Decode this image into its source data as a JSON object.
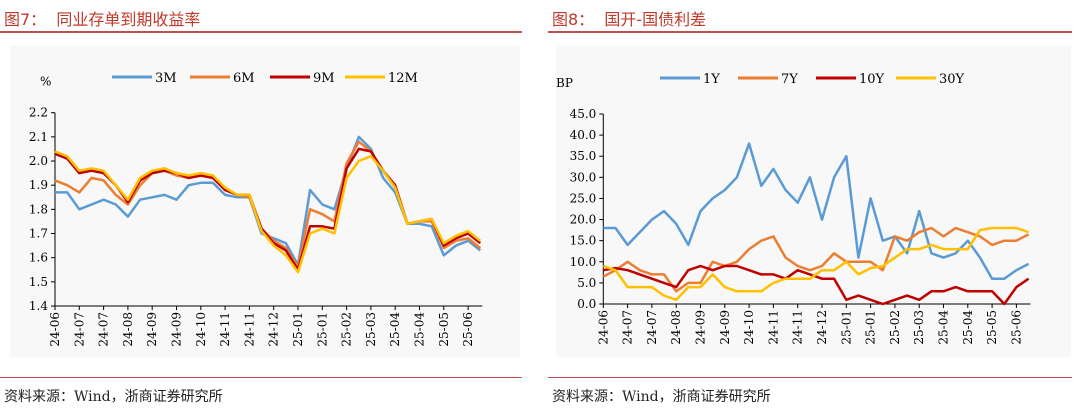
{
  "panels": [
    {
      "title": "图7：  同业存单到期收益率",
      "source": "资料来源：Wind，浙商证券研究所"
    },
    {
      "title": "图8：  国开-国债利差",
      "source": "资料来源：Wind，浙商证券研究所"
    }
  ],
  "chart_data": [
    {
      "type": "line",
      "title": "同业存单到期收益率",
      "ylabel": "%",
      "ylim": [
        1.4,
        2.2
      ],
      "yticks": [
        "1.4",
        "1.5",
        "1.6",
        "1.7",
        "1.8",
        "1.9",
        "2.0",
        "2.1",
        "2.2"
      ],
      "xticks": [
        "24-06",
        "24-07",
        "24-07",
        "24-08",
        "24-09",
        "24-09",
        "24-10",
        "24-11",
        "24-11",
        "24-12",
        "25-01",
        "25-01",
        "25-02",
        "25-03",
        "25-04",
        "25-04",
        "25-05",
        "25-06"
      ],
      "legend": "top",
      "grid": false,
      "x": [
        "2024-06-03",
        "2024-06-14",
        "2024-06-25",
        "2024-07-06",
        "2024-07-17",
        "2024-07-28",
        "2024-08-08",
        "2024-08-19",
        "2024-08-30",
        "2024-09-10",
        "2024-09-21",
        "2024-10-02",
        "2024-10-13",
        "2024-10-24",
        "2024-11-04",
        "2024-11-15",
        "2024-11-26",
        "2024-12-07",
        "2024-12-18",
        "2024-12-29",
        "2025-01-09",
        "2025-01-20",
        "2025-01-31",
        "2025-02-11",
        "2025-02-22",
        "2025-03-05",
        "2025-03-16",
        "2025-03-27",
        "2025-04-07",
        "2025-04-18",
        "2025-04-29",
        "2025-05-10",
        "2025-05-21",
        "2025-06-01",
        "2025-06-12",
        "2025-06-20"
      ],
      "series": [
        {
          "name": "3M",
          "color": "#5B9BD5",
          "values": [
            1.87,
            1.87,
            1.8,
            1.82,
            1.84,
            1.82,
            1.77,
            1.84,
            1.85,
            1.86,
            1.84,
            1.9,
            1.91,
            1.91,
            1.86,
            1.85,
            1.85,
            1.7,
            1.68,
            1.66,
            1.57,
            1.88,
            1.82,
            1.8,
            1.97,
            2.1,
            2.05,
            1.93,
            1.87,
            1.74,
            1.74,
            1.73,
            1.61,
            1.65,
            1.67,
            1.63
          ]
        },
        {
          "name": "6M",
          "color": "#ED7D31",
          "values": [
            1.92,
            1.9,
            1.87,
            1.93,
            1.92,
            1.86,
            1.82,
            1.9,
            1.95,
            1.96,
            1.94,
            1.93,
            1.94,
            1.93,
            1.88,
            1.86,
            1.85,
            1.72,
            1.67,
            1.64,
            1.56,
            1.8,
            1.78,
            1.75,
            1.99,
            2.08,
            2.04,
            1.96,
            1.89,
            1.74,
            1.75,
            1.75,
            1.64,
            1.67,
            1.68,
            1.64
          ]
        },
        {
          "name": "9M",
          "color": "#C00000",
          "values": [
            2.03,
            2.01,
            1.95,
            1.96,
            1.95,
            1.9,
            1.83,
            1.92,
            1.95,
            1.96,
            1.95,
            1.93,
            1.94,
            1.93,
            1.88,
            1.86,
            1.86,
            1.72,
            1.66,
            1.63,
            1.55,
            1.73,
            1.73,
            1.72,
            1.97,
            2.05,
            2.04,
            1.96,
            1.9,
            1.74,
            1.75,
            1.76,
            1.65,
            1.68,
            1.7,
            1.66
          ]
        },
        {
          "name": "12M",
          "color": "#FFC000",
          "values": [
            2.04,
            2.02,
            1.96,
            1.97,
            1.96,
            1.9,
            1.84,
            1.93,
            1.96,
            1.97,
            1.95,
            1.94,
            1.95,
            1.94,
            1.89,
            1.86,
            1.86,
            1.71,
            1.65,
            1.61,
            1.54,
            1.7,
            1.72,
            1.7,
            1.93,
            2.0,
            2.02,
            1.96,
            1.89,
            1.74,
            1.75,
            1.76,
            1.66,
            1.69,
            1.71,
            1.67
          ]
        }
      ]
    },
    {
      "type": "line",
      "title": "国开-国债利差",
      "ylabel": "BP",
      "ylim": [
        0,
        45
      ],
      "yticks": [
        "0.0",
        "5.0",
        "10.0",
        "15.0",
        "20.0",
        "25.0",
        "30.0",
        "35.0",
        "40.0",
        "45.0"
      ],
      "xticks": [
        "24-06",
        "24-07",
        "24-07",
        "24-08",
        "24-09",
        "24-09",
        "24-10",
        "24-11",
        "24-11",
        "24-12",
        "25-01",
        "25-01",
        "25-02",
        "25-03",
        "25-04",
        "25-04",
        "25-05",
        "25-06"
      ],
      "legend": "top",
      "grid": false,
      "x": [
        "2024-06-03",
        "2024-06-14",
        "2024-06-25",
        "2024-07-06",
        "2024-07-17",
        "2024-07-28",
        "2024-08-08",
        "2024-08-19",
        "2024-08-30",
        "2024-09-10",
        "2024-09-21",
        "2024-10-02",
        "2024-10-13",
        "2024-10-24",
        "2024-11-04",
        "2024-11-15",
        "2024-11-26",
        "2024-12-07",
        "2024-12-18",
        "2024-12-29",
        "2025-01-09",
        "2025-01-20",
        "2025-01-31",
        "2025-02-11",
        "2025-02-22",
        "2025-03-05",
        "2025-03-16",
        "2025-03-27",
        "2025-04-07",
        "2025-04-18",
        "2025-04-29",
        "2025-05-10",
        "2025-05-21",
        "2025-06-01",
        "2025-06-12",
        "2025-06-20"
      ],
      "series": [
        {
          "name": "1Y",
          "color": "#5B9BD5",
          "values": [
            18,
            18,
            14,
            17,
            20,
            22,
            19,
            14,
            22,
            25,
            27,
            30,
            38,
            28,
            32,
            27,
            24,
            30,
            20,
            30,
            35,
            11,
            25,
            15,
            16,
            12,
            22,
            12,
            11,
            12,
            15,
            11,
            6,
            6,
            8,
            9.5
          ]
        },
        {
          "name": "7Y",
          "color": "#ED7D31",
          "values": [
            6.5,
            8,
            10,
            8,
            7,
            7,
            3,
            5,
            5,
            10,
            9,
            10,
            13,
            15,
            16,
            11,
            9,
            8,
            9,
            12,
            10,
            10,
            10,
            8,
            16,
            15,
            17,
            18,
            16,
            18,
            17,
            16,
            14,
            15,
            15,
            16.5
          ]
        },
        {
          "name": "10Y",
          "color": "#C00000",
          "values": [
            8,
            8.5,
            8,
            7,
            6,
            5,
            4,
            8,
            9,
            8,
            9,
            9,
            8,
            7,
            7,
            6,
            8,
            7,
            6,
            6,
            1,
            2,
            1,
            0,
            1,
            2,
            1,
            3,
            3,
            4,
            3,
            3,
            3,
            0,
            4,
            6
          ]
        },
        {
          "name": "30Y",
          "color": "#FFC000",
          "values": [
            9,
            8,
            4,
            4,
            4,
            2,
            1,
            4,
            4,
            7,
            4,
            3,
            3,
            3,
            5,
            6,
            6,
            6,
            8,
            8,
            10,
            7,
            8.5,
            9,
            11,
            13,
            13,
            14,
            13,
            13,
            13,
            17.5,
            18,
            18,
            18,
            17
          ]
        }
      ]
    }
  ]
}
